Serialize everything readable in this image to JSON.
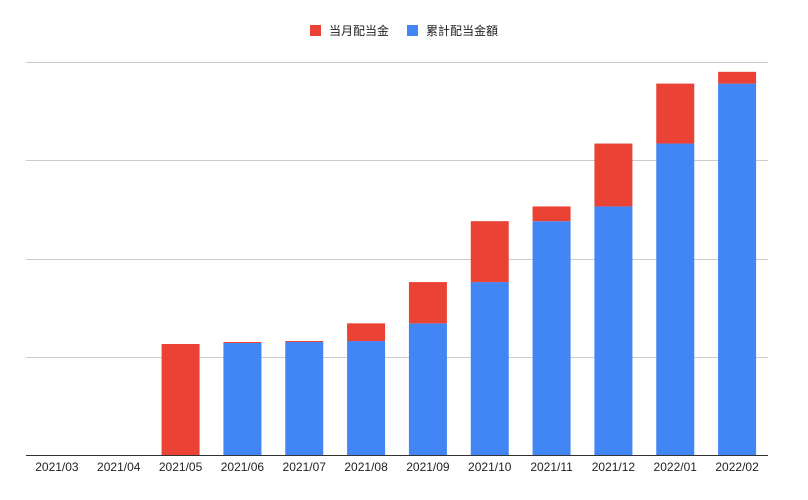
{
  "chart_data": {
    "type": "bar",
    "stacked": true,
    "categories": [
      "2021/03",
      "2021/04",
      "2021/05",
      "2021/06",
      "2021/07",
      "2021/08",
      "2021/09",
      "2021/10",
      "2021/11",
      "2021/12",
      "2022/01",
      "2022/02"
    ],
    "series": [
      {
        "name": "累計配当金額",
        "color": "#4285f4",
        "values": [
          0,
          0,
          0,
          1.14,
          1.15,
          1.16,
          1.34,
          1.76,
          2.38,
          2.53,
          3.17,
          3.78
        ]
      },
      {
        "name": "当月配当金",
        "color": "#ea4335",
        "values": [
          0,
          0,
          1.13,
          0.01,
          0.01,
          0.18,
          0.42,
          0.62,
          0.15,
          0.64,
          0.61,
          0.12
        ]
      }
    ],
    "legend_order": [
      "当月配当金",
      "累計配当金額"
    ],
    "legend_position": "top",
    "ylim": [
      0,
      4
    ],
    "yticks": [
      0,
      1,
      2,
      3,
      4
    ],
    "ytick_labels_visible": false,
    "grid": true
  }
}
